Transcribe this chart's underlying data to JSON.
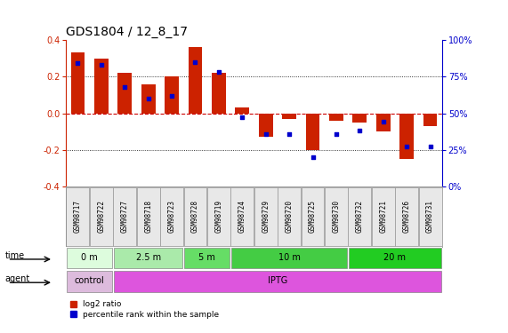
{
  "title": "GDS1804 / 12_8_17",
  "samples": [
    "GSM98717",
    "GSM98722",
    "GSM98727",
    "GSM98718",
    "GSM98723",
    "GSM98728",
    "GSM98719",
    "GSM98724",
    "GSM98729",
    "GSM98720",
    "GSM98725",
    "GSM98730",
    "GSM98732",
    "GSM98721",
    "GSM98726",
    "GSM98731"
  ],
  "log2_ratio": [
    0.33,
    0.3,
    0.22,
    0.16,
    0.2,
    0.36,
    0.22,
    0.03,
    -0.13,
    -0.03,
    -0.2,
    -0.04,
    -0.05,
    -0.1,
    -0.25,
    -0.07
  ],
  "pct_rank": [
    0.84,
    0.83,
    0.68,
    0.6,
    0.62,
    0.85,
    0.78,
    0.47,
    0.36,
    0.36,
    0.2,
    0.36,
    0.38,
    0.44,
    0.27,
    0.27
  ],
  "ylim_left": [
    -0.4,
    0.4
  ],
  "ylim_right": [
    0.0,
    1.0
  ],
  "yticks_left": [
    -0.4,
    -0.2,
    0.0,
    0.2,
    0.4
  ],
  "ytick_labels_right": [
    "0%",
    "25%",
    "50%",
    "75%",
    "100%"
  ],
  "yticks_right": [
    0.0,
    0.25,
    0.5,
    0.75,
    1.0
  ],
  "time_groups": [
    {
      "label": "0 m",
      "start": 0,
      "end": 2,
      "color": "#ddfcdd"
    },
    {
      "label": "2.5 m",
      "start": 2,
      "end": 5,
      "color": "#aaeaaa"
    },
    {
      "label": "5 m",
      "start": 5,
      "end": 7,
      "color": "#66dd66"
    },
    {
      "label": "10 m",
      "start": 7,
      "end": 12,
      "color": "#44cc44"
    },
    {
      "label": "20 m",
      "start": 12,
      "end": 16,
      "color": "#22cc22"
    }
  ],
  "agent_groups": [
    {
      "label": "control",
      "start": 0,
      "end": 2,
      "color": "#ddbbdd"
    },
    {
      "label": "IPTG",
      "start": 2,
      "end": 16,
      "color": "#dd55dd"
    }
  ],
  "bar_color": "#cc2200",
  "dot_color": "#0000cc",
  "zero_line_color": "#cc0000",
  "grid_color": "#000000",
  "bg_color": "#ffffff",
  "title_fontsize": 10,
  "tick_label_fontsize": 7,
  "sample_fontsize": 5.5,
  "row_fontsize": 7,
  "legend_fontsize": 6.5
}
